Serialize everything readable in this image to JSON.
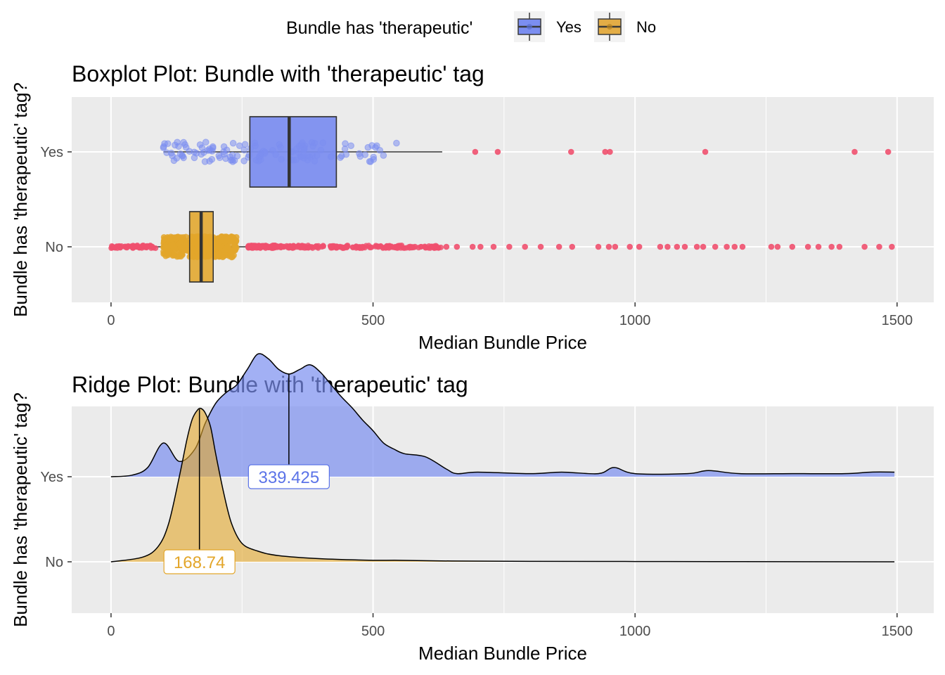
{
  "legend": {
    "title": "Bundle has 'therapeutic'",
    "items": [
      {
        "key": "yes",
        "label": "Yes",
        "fill": "#7b8ef0",
        "line": "#3a3a3a"
      },
      {
        "key": "no",
        "label": "No",
        "fill": "#e3ad46",
        "line": "#3a3a3a"
      }
    ]
  },
  "colors": {
    "yes": "#7b8ef0",
    "no": "#e3a62a",
    "outlier": "#f0506e",
    "panel": "#ebebeb",
    "grid": "#ffffff"
  },
  "chart_data": [
    {
      "type": "boxplot",
      "title": "Boxplot Plot: Bundle with 'therapeutic' tag",
      "xlabel": "Median Bundle Price",
      "ylabel": "Bundle has 'therapeutic' tag?",
      "xlim": [
        -75,
        1570
      ],
      "xticks": [
        0,
        500,
        1000,
        1500
      ],
      "categories": [
        "Yes",
        "No"
      ],
      "boxes": [
        {
          "category": "Yes",
          "whisker_low": 100,
          "q1": 265,
          "median": 340,
          "q3": 430,
          "whisker_high": 632,
          "outliers": [
            695,
            738,
            878,
            943,
            952,
            1134,
            1419,
            1483
          ]
        },
        {
          "category": "No",
          "whisker_low": 0,
          "q1": 150,
          "median": 172,
          "q3": 195,
          "whisker_high": 260,
          "outliers": [
            262,
            290,
            320,
            355,
            390,
            420,
            450,
            480,
            510,
            545,
            580,
            612,
            640,
            660,
            690,
            705,
            730,
            760,
            790,
            820,
            855,
            880,
            930,
            950,
            962,
            990,
            1008,
            1048,
            1062,
            1080,
            1095,
            1118,
            1130,
            1153,
            1175,
            1190,
            1205,
            1260,
            1272,
            1300,
            1330,
            1350,
            1375,
            1390,
            1438,
            1466,
            1490
          ]
        }
      ],
      "grid": true
    },
    {
      "type": "ridge",
      "title": "Ridge Plot: Bundle with 'therapeutic' tag",
      "xlabel": "Median Bundle Price",
      "ylabel": "Bundle has 'therapeutic' tag?",
      "xlim": [
        -75,
        1570
      ],
      "xticks": [
        0,
        500,
        1000,
        1500
      ],
      "categories": [
        "Yes",
        "No"
      ],
      "series": [
        {
          "name": "Yes",
          "median": 339.425,
          "median_label": "339.425",
          "x": [
            0,
            40,
            70,
            100,
            130,
            160,
            180,
            200,
            220,
            240,
            260,
            280,
            300,
            320,
            340,
            360,
            380,
            400,
            420,
            440,
            460,
            480,
            500,
            520,
            540,
            560,
            600,
            640,
            660,
            700,
            800,
            860,
            930,
            960,
            1000,
            1100,
            1140,
            1200,
            1300,
            1400,
            1450,
            1495
          ],
          "density": [
            0.0,
            0.01,
            0.06,
            0.22,
            0.1,
            0.18,
            0.35,
            0.48,
            0.55,
            0.6,
            0.7,
            0.8,
            0.77,
            0.7,
            0.67,
            0.7,
            0.73,
            0.68,
            0.6,
            0.52,
            0.45,
            0.37,
            0.3,
            0.22,
            0.18,
            0.15,
            0.13,
            0.05,
            0.02,
            0.03,
            0.02,
            0.03,
            0.02,
            0.06,
            0.02,
            0.02,
            0.04,
            0.02,
            0.02,
            0.02,
            0.03,
            0.03
          ]
        },
        {
          "name": "No",
          "median": 168.74,
          "median_label": "168.74",
          "x": [
            0,
            60,
            90,
            110,
            130,
            145,
            155,
            165,
            172,
            180,
            190,
            200,
            215,
            230,
            250,
            280,
            320,
            400,
            500,
            550,
            650,
            800,
            1000,
            1200,
            1495
          ],
          "density": [
            0.0,
            0.03,
            0.1,
            0.25,
            0.55,
            0.8,
            0.93,
            0.99,
            1.0,
            0.97,
            0.88,
            0.7,
            0.45,
            0.25,
            0.12,
            0.07,
            0.04,
            0.02,
            0.01,
            0.01,
            0.005,
            0.003,
            0.002,
            0.001,
            0.0
          ]
        }
      ],
      "grid": true
    }
  ]
}
